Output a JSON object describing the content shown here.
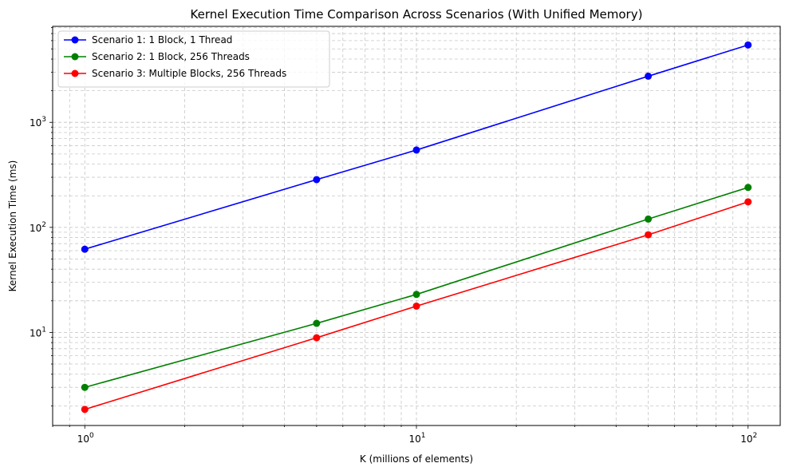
{
  "chart_data": {
    "type": "line",
    "title": "Kernel Execution Time Comparison Across Scenarios (With Unified Memory)",
    "xlabel": "K (millions of elements)",
    "ylabel": "Kernel Execution Time (ms)",
    "xscale": "log",
    "yscale": "log",
    "xlim": [
      0.8,
      125
    ],
    "ylim": [
      1.3,
      8200
    ],
    "grid": true,
    "legend_position": "upper-left",
    "x": [
      1,
      5,
      10,
      50,
      100
    ],
    "x_ticks": [
      {
        "value": 1,
        "base": "10",
        "exp": "0"
      },
      {
        "value": 10,
        "base": "10",
        "exp": "1"
      },
      {
        "value": 100,
        "base": "10",
        "exp": "2"
      }
    ],
    "y_ticks": [
      {
        "value": 10,
        "base": "10",
        "exp": "1"
      },
      {
        "value": 100,
        "base": "10",
        "exp": "2"
      },
      {
        "value": 1000,
        "base": "10",
        "exp": "3"
      }
    ],
    "series": [
      {
        "name": "Scenario 1: 1 Block, 1 Thread",
        "color": "#0000ff",
        "values": [
          62,
          285,
          545,
          2750,
          5450
        ]
      },
      {
        "name": "Scenario 2: 1 Block, 256 Threads",
        "color": "#008000",
        "values": [
          3.0,
          12.2,
          23,
          120,
          240
        ]
      },
      {
        "name": "Scenario 3: Multiple Blocks, 256 Threads",
        "color": "#ff0000",
        "values": [
          1.85,
          8.9,
          17.8,
          85,
          175
        ]
      }
    ]
  }
}
